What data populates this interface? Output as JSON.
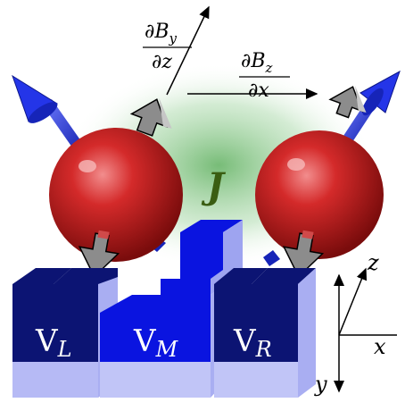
{
  "exchange": {
    "symbol": "J"
  },
  "gates": [
    {
      "id": "left",
      "label_main": "V",
      "label_sub": "L"
    },
    {
      "id": "middle",
      "label_main": "V",
      "label_sub": "M"
    },
    {
      "id": "right",
      "label_main": "V",
      "label_sub": "R"
    }
  ],
  "gradients": [
    {
      "id": "dBy-dz",
      "numerator": "∂B",
      "num_sub": "y",
      "denominator": "∂z"
    },
    {
      "id": "dBz-dx",
      "numerator": "∂B",
      "num_sub": "z",
      "denominator": "∂x"
    }
  ],
  "axes": {
    "z": "z",
    "x": "x",
    "y": "y"
  },
  "colors": {
    "sphere": "#c21818",
    "spin_arrow": "#1d2fd6",
    "gate_top": "#0c1473",
    "gate_side": "#a9aef2",
    "middle_gate": "#0a14e0",
    "exchange_glow": "#6fbf6f",
    "field_arrow": "#8c8c8c"
  }
}
